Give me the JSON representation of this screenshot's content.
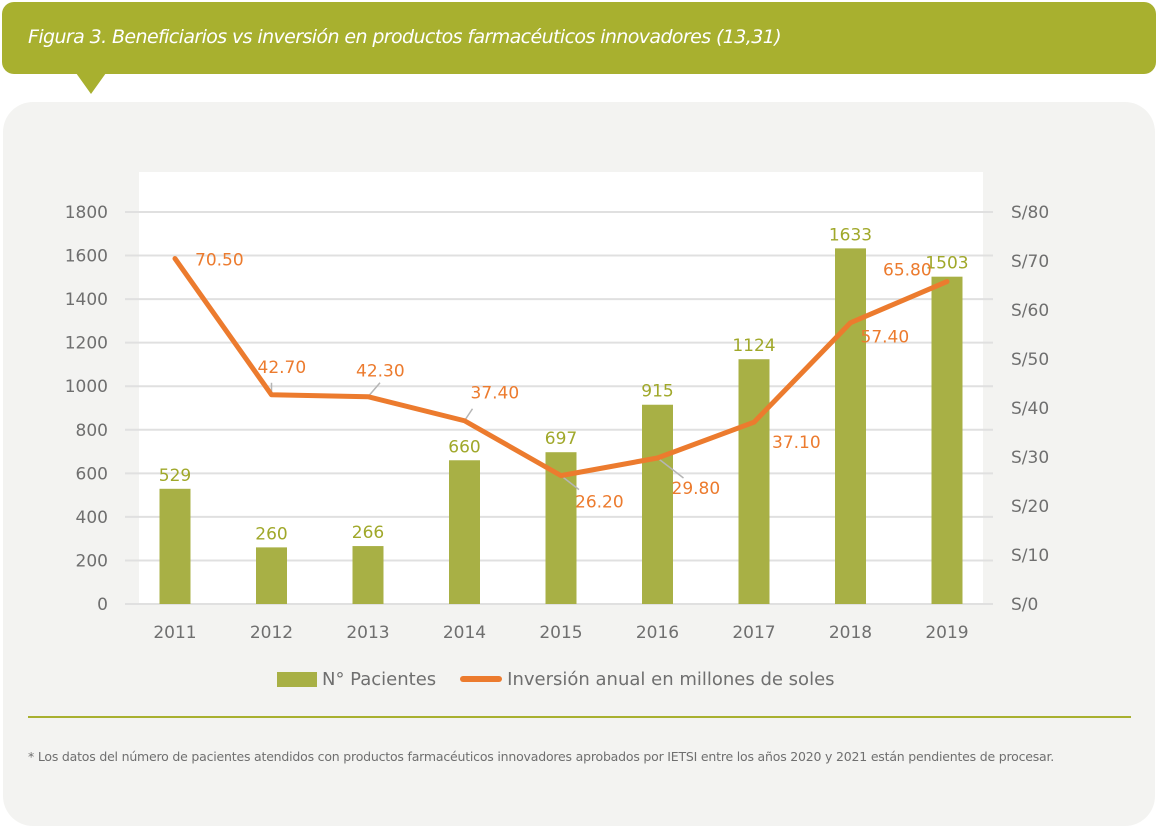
{
  "header": {
    "title": "Figura 3. Beneficiarios vs inversión en productos farmacéuticos innovadores (13,31)"
  },
  "legend": {
    "bar_label": "N° Pacientes",
    "line_label": "Inversión anual en millones de soles"
  },
  "footnote": "* Los datos del número de pacientes atendidos con productos farmacéuticos innovadores aprobados por IETSI entre los años 2020 y 2021 están pendientes de procesar.",
  "colors": {
    "header": "#a8b02f",
    "bar": "#a8b045",
    "line": "#ec7b2e",
    "bar_label": "#a0a82a",
    "axis_text": "#6f6f6f",
    "panel": "#f3f3f1"
  },
  "chart_data": {
    "type": "bar",
    "title": "",
    "xlabel": "",
    "ylabel": "",
    "categories": [
      "2011",
      "2012",
      "2013",
      "2014",
      "2015",
      "2016",
      "2017",
      "2018",
      "2019"
    ],
    "series": [
      {
        "name": "N° Pacientes",
        "type": "bar",
        "axis": "left",
        "values": [
          529,
          260,
          266,
          660,
          697,
          915,
          1124,
          1633,
          1503
        ],
        "labels": [
          "529",
          "260",
          "266",
          "660",
          "697",
          "915",
          "1124",
          "1633",
          "1503"
        ]
      },
      {
        "name": "Inversión anual en millones de soles",
        "type": "line",
        "axis": "right",
        "values": [
          70.5,
          42.7,
          42.3,
          37.4,
          26.2,
          29.8,
          37.1,
          57.4,
          65.8
        ],
        "labels": [
          "70.50",
          "42.70",
          "42.30",
          "37.40",
          "26.20",
          "29.80",
          "37.10",
          "57.40",
          "65.80"
        ]
      }
    ],
    "y_left": {
      "ylim": [
        0,
        1800
      ],
      "ticks": [
        0,
        200,
        400,
        600,
        800,
        1000,
        1200,
        1400,
        1600,
        1800
      ],
      "tick_labels": [
        "0",
        "200",
        "400",
        "600",
        "800",
        "1000",
        "1200",
        "1400",
        "1600",
        "1800"
      ]
    },
    "y_right": {
      "ylim": [
        0,
        80
      ],
      "ticks": [
        0,
        10,
        20,
        30,
        40,
        50,
        60,
        70,
        80
      ],
      "tick_labels": [
        "S/0",
        "S/10",
        "S/20",
        "S/30",
        "S/40",
        "S/50",
        "S/60",
        "S/70",
        "S/80"
      ]
    },
    "grid": true,
    "legend_position": "bottom"
  }
}
